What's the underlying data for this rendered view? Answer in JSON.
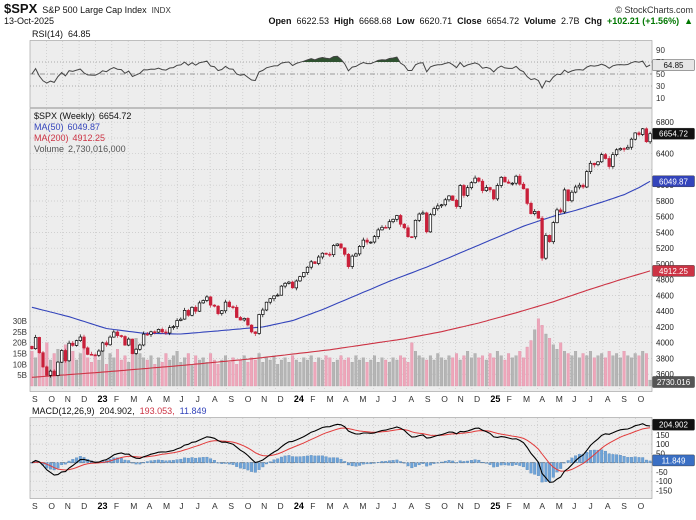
{
  "header": {
    "symbol": "$SPX",
    "name": "S&P 500 Large Cap Index",
    "exchange": "INDX",
    "date": "13-Oct-2025",
    "copyright": "© StockCharts.com",
    "quote": {
      "open_label": "Open",
      "open": "6622.53",
      "high_label": "High",
      "high": "6668.68",
      "low_label": "Low",
      "low": "6620.71",
      "close_label": "Close",
      "close": "6654.72",
      "volume_label": "Volume",
      "volume": "2.7B",
      "chg_label": "Chg",
      "chg": "+102.21 (+1.56%)",
      "chg_arrow": "▲"
    }
  },
  "rsi_panel": {
    "label": "RSI(14)",
    "value": "64.85",
    "badge": "64.85",
    "axis_labels": [
      90,
      70,
      50,
      30,
      10
    ]
  },
  "main_panel": {
    "legend": {
      "series": "$SPX (Weekly)",
      "series_value": "6654.72",
      "ma50_label": "MA(50)",
      "ma50_value": "6049.87",
      "ma200_label": "MA(200)",
      "ma200_value": "4912.25",
      "volume_label": "Volume",
      "volume_value": "2,730,016,000"
    },
    "price_axis_labels": [
      6800,
      6400,
      6000,
      5800,
      5600,
      5400,
      5200,
      5000,
      4800,
      4600,
      4400,
      4200,
      4000,
      3800,
      3600
    ],
    "volume_axis_labels": [
      "30B",
      "25B",
      "20B",
      "15B",
      "10B",
      "5B"
    ],
    "badges": {
      "price": "6654.72",
      "ma50": "6049.87",
      "ma200": "4912.25",
      "volume": "2730.016"
    }
  },
  "macd_panel": {
    "label": "MACD(12,26,9)",
    "macd_value": "204.902,",
    "signal_value": "193.053,",
    "hist_value": "11.849",
    "axis_labels": [
      200,
      150,
      100,
      50,
      0,
      -50,
      -100,
      -150
    ],
    "badges": {
      "macd": "204.902",
      "hist": "11.849"
    }
  },
  "chart_data": {
    "type": "candlestick",
    "timeframe": "weekly",
    "title": "$SPX (Weekly)",
    "x_labels": [
      "S",
      "O",
      "N",
      "D",
      "23",
      "F",
      "M",
      "A",
      "M",
      "J",
      "J",
      "A",
      "S",
      "O",
      "N",
      "D",
      "24",
      "F",
      "M",
      "A",
      "M",
      "J",
      "J",
      "A",
      "S",
      "O",
      "N",
      "D",
      "25",
      "F",
      "M",
      "A",
      "M",
      "J",
      "J",
      "A",
      "S",
      "O"
    ],
    "ohlc_today": {
      "open": 6622.53,
      "high": 6668.68,
      "low": 6620.71,
      "close": 6654.72,
      "volume": "2.7B",
      "change": 102.21,
      "change_pct": 1.56
    },
    "price": {
      "ylim": [
        3450,
        6930
      ],
      "grid_step": 200,
      "closes": [
        3924,
        4067,
        3873,
        3693,
        3586,
        3639,
        3583,
        3753,
        3901,
        3770,
        3993,
        3965,
        4026,
        4072,
        3934,
        3852,
        3845,
        3840,
        3895,
        3999,
        3973,
        4071,
        4136,
        4090,
        4079,
        3970,
        4046,
        3862,
        3917,
        3971,
        4109,
        4105,
        4138,
        4134,
        4169,
        4136,
        4124,
        4192,
        4205,
        4282,
        4299,
        4410,
        4348,
        4450,
        4399,
        4505,
        4536,
        4582,
        4478,
        4464,
        4370,
        4406,
        4516,
        4457,
        4450,
        4320,
        4288,
        4308,
        4224,
        4137,
        4117,
        4358,
        4415,
        4514,
        4559,
        4594,
        4604,
        4719,
        4754,
        4770,
        4697,
        4784,
        4839,
        4891,
        4959,
        5027,
        5006,
        5089,
        5137,
        5124,
        5117,
        5234,
        5254,
        5204,
        5123,
        4967,
        5100,
        5128,
        5223,
        5303,
        5278,
        5278,
        5347,
        5432,
        5465,
        5460,
        5537,
        5567,
        5615,
        5505,
        5459,
        5346,
        5344,
        5554,
        5634,
        5648,
        5408,
        5626,
        5703,
        5738,
        5751,
        5815,
        5865,
        5808,
        5729,
        5996,
        5870,
        5969,
        6032,
        6090,
        6051,
        5931,
        5971,
        5942,
        5827,
        5997,
        6101,
        6041,
        6026,
        6026,
        6115,
        6013,
        5955,
        5770,
        5639,
        5668,
        5581,
        5074,
        5363,
        5283,
        5525,
        5687,
        5660,
        5940,
        5803,
        5912,
        5977,
        6000,
        5977,
        6173,
        6279,
        6260,
        6297,
        6389,
        6339,
        6238,
        6389,
        6450,
        6467,
        6460,
        6482,
        6584,
        6664,
        6644,
        6716,
        6552,
        6654.72
      ]
    },
    "overlays": {
      "ma50": {
        "period": 50,
        "current": 6049.87,
        "color": "#3344bb",
        "keypoints": [
          [
            0,
            4450
          ],
          [
            10,
            4330
          ],
          [
            20,
            4180
          ],
          [
            30,
            4120
          ],
          [
            40,
            4110
          ],
          [
            50,
            4150
          ],
          [
            57,
            4180
          ],
          [
            62,
            4200
          ],
          [
            70,
            4280
          ],
          [
            78,
            4420
          ],
          [
            87,
            4600
          ],
          [
            96,
            4780
          ],
          [
            106,
            4960
          ],
          [
            114,
            5120
          ],
          [
            123,
            5300
          ],
          [
            132,
            5480
          ],
          [
            137,
            5560
          ],
          [
            141,
            5620
          ],
          [
            146,
            5680
          ],
          [
            150,
            5740
          ],
          [
            154,
            5800
          ],
          [
            159,
            5880
          ],
          [
            163,
            5970
          ],
          [
            166,
            6049.87
          ]
        ]
      },
      "ma200": {
        "period": 200,
        "current": 4912.25,
        "color": "#cc3344",
        "keypoints": [
          [
            0,
            3560
          ],
          [
            20,
            3630
          ],
          [
            40,
            3710
          ],
          [
            60,
            3800
          ],
          [
            80,
            3910
          ],
          [
            100,
            4050
          ],
          [
            110,
            4140
          ],
          [
            120,
            4250
          ],
          [
            130,
            4380
          ],
          [
            140,
            4520
          ],
          [
            150,
            4680
          ],
          [
            158,
            4800
          ],
          [
            166,
            4912.25
          ]
        ]
      }
    },
    "volume": {
      "unit": "billions",
      "ylim": [
        0,
        36
      ],
      "current_label": "2,730,016,000",
      "values": [
        16,
        13,
        18,
        14,
        20,
        12,
        15,
        17,
        11,
        19,
        14,
        16,
        12,
        15,
        18,
        13,
        11,
        14,
        12,
        16,
        10,
        15,
        13,
        17,
        12,
        14,
        11,
        18,
        22,
        15,
        13,
        12,
        14,
        10,
        13,
        11,
        15,
        12,
        14,
        16,
        11,
        13,
        15,
        10,
        14,
        12,
        13,
        11,
        15,
        12,
        10,
        12,
        14,
        11,
        13,
        10,
        12,
        14,
        11,
        13,
        12,
        15,
        11,
        13,
        12,
        14,
        10,
        12,
        13,
        11,
        14,
        12,
        11,
        13,
        12,
        14,
        11,
        13,
        12,
        14,
        13,
        11,
        12,
        14,
        12,
        13,
        11,
        14,
        12,
        13,
        11,
        12,
        14,
        11,
        13,
        12,
        11,
        13,
        12,
        14,
        13,
        11,
        20,
        16,
        14,
        13,
        12,
        14,
        12,
        15,
        13,
        12,
        14,
        13,
        15,
        12,
        14,
        16,
        13,
        15,
        13,
        14,
        12,
        15,
        13,
        16,
        14,
        12,
        15,
        13,
        14,
        16,
        13,
        18,
        21,
        26,
        31,
        28,
        24,
        22,
        19,
        17,
        20,
        16,
        15,
        14,
        16,
        13,
        15,
        14,
        16,
        13,
        14,
        15,
        13,
        16,
        14,
        15,
        13,
        16,
        14,
        13,
        15,
        14,
        16,
        15,
        2.7
      ]
    },
    "rsi": {
      "period": 14,
      "current": 64.85,
      "overbought": 70,
      "midline": 50,
      "oversold": 30,
      "ylim": [
        0,
        100
      ]
    },
    "macd": {
      "fast": 12,
      "slow": 26,
      "signal_period": 9,
      "current_macd": 204.902,
      "current_signal": 193.053,
      "current_hist": 11.849,
      "ylim": [
        -180,
        230
      ]
    }
  }
}
